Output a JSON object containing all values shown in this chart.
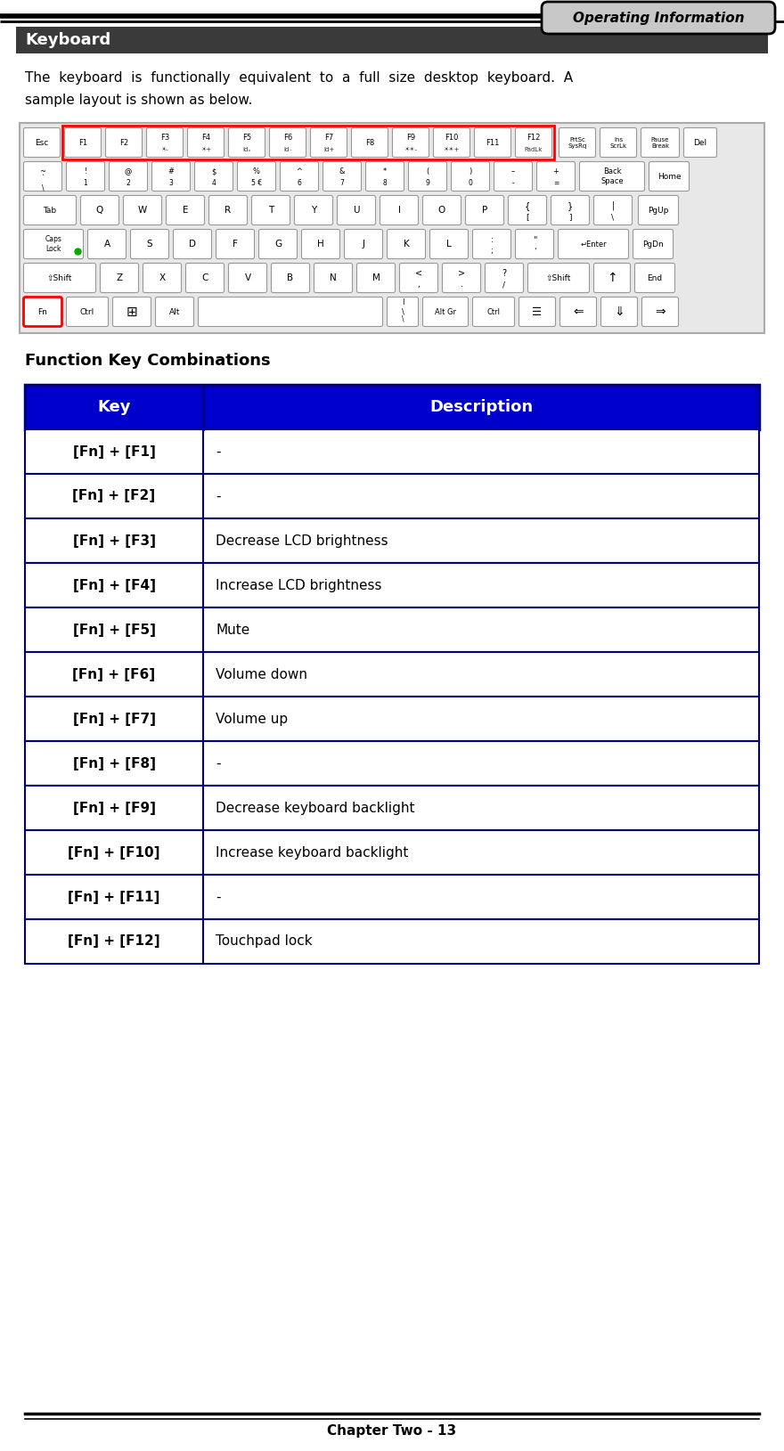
{
  "page_title": "Operating Information",
  "section_title": "Keyboard",
  "body_line1": "The  keyboard  is  functionally  equivalent  to  a  full  size  desktop  keyboard.  A",
  "body_line2": "sample layout is shown as below.",
  "fn_section_title": "Function Key Combinations",
  "table_header": [
    "Key",
    "Description"
  ],
  "table_rows": [
    [
      "[Fn] + [F1]",
      "-"
    ],
    [
      "[Fn] + [F2]",
      "-"
    ],
    [
      "[Fn] + [F3]",
      "Decrease LCD brightness"
    ],
    [
      "[Fn] + [F4]",
      "Increase LCD brightness"
    ],
    [
      "[Fn] + [F5]",
      "Mute"
    ],
    [
      "[Fn] + [F6]",
      "Volume down"
    ],
    [
      "[Fn] + [F7]",
      "Volume up"
    ],
    [
      "[Fn] + [F8]",
      "-"
    ],
    [
      "[Fn] + [F9]",
      "Decrease keyboard backlight"
    ],
    [
      "[Fn] + [F10]",
      "Increase keyboard backlight"
    ],
    [
      "[Fn] + [F11]",
      "-"
    ],
    [
      "[Fn] + [F12]",
      "Touchpad lock"
    ]
  ],
  "footer_text": "Chapter Two - 13",
  "header_tab_color": "#c8c8c8",
  "section_title_bg": "#3a3a3a",
  "section_title_color": "#ffffff",
  "table_header_bg": "#0000cc",
  "table_header_color": "#ffffff",
  "table_border_color": "#000080",
  "page_bg": "#ffffff"
}
